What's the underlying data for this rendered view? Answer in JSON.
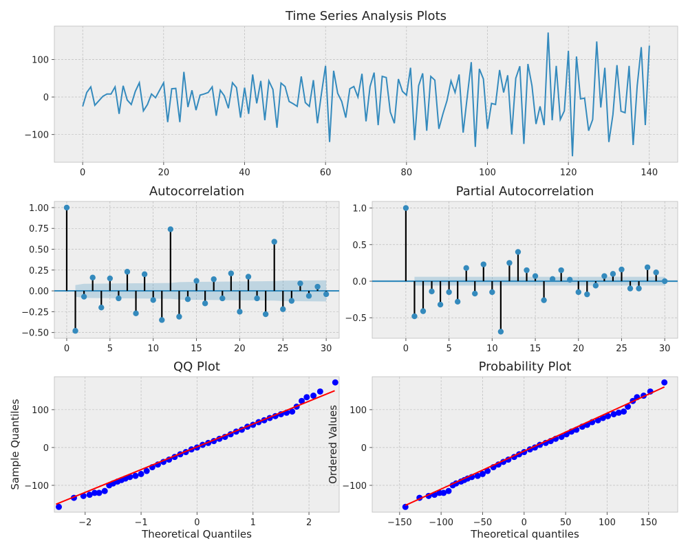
{
  "chart_data": [
    {
      "type": "line",
      "title": "Time Series Analysis Plots",
      "color": "#348ABD",
      "grid": true,
      "x": [
        0,
        1,
        2,
        3,
        4,
        5,
        6,
        7,
        8,
        9,
        10,
        11,
        12,
        13,
        14,
        15,
        16,
        17,
        18,
        19,
        20,
        21,
        22,
        23,
        24,
        25,
        26,
        27,
        28,
        29,
        30,
        31,
        32,
        33,
        34,
        35,
        36,
        37,
        38,
        39,
        40,
        41,
        42,
        43,
        44,
        45,
        46,
        47,
        48,
        49,
        50,
        51,
        52,
        53,
        54,
        55,
        56,
        57,
        58,
        59,
        60,
        61,
        62,
        63,
        64,
        65,
        66,
        67,
        68,
        69,
        70,
        71,
        72,
        73,
        74,
        75,
        76,
        77,
        78,
        79,
        80,
        81,
        82,
        83,
        84,
        85,
        86,
        87,
        88,
        89,
        90,
        91,
        92,
        93,
        94,
        95,
        96,
        97,
        98,
        99,
        100,
        101,
        102,
        103,
        104,
        105,
        106,
        107,
        108,
        109,
        110,
        111,
        112,
        113,
        114,
        115,
        116,
        117,
        118,
        119,
        120,
        121,
        122,
        123,
        124,
        125,
        126,
        127,
        128,
        129,
        130,
        131,
        132,
        133,
        134,
        135,
        136,
        137,
        138,
        139,
        140
      ],
      "values": [
        -25,
        12,
        27,
        -22,
        -10,
        2,
        8,
        8,
        27,
        -45,
        30,
        -8,
        -20,
        15,
        38,
        -37,
        -20,
        8,
        -2,
        18,
        38,
        -67,
        22,
        23,
        -67,
        67,
        -27,
        18,
        -35,
        5,
        8,
        12,
        27,
        -50,
        18,
        3,
        -30,
        38,
        25,
        -55,
        25,
        -45,
        60,
        -17,
        43,
        -62,
        43,
        20,
        -82,
        37,
        28,
        -12,
        -18,
        -25,
        55,
        -15,
        -25,
        45,
        -70,
        10,
        83,
        -120,
        70,
        10,
        -12,
        -55,
        22,
        28,
        0,
        62,
        -65,
        28,
        65,
        -75,
        55,
        52,
        -40,
        -70,
        48,
        15,
        5,
        78,
        -115,
        30,
        63,
        -90,
        55,
        45,
        -85,
        -45,
        -10,
        43,
        12,
        60,
        -95,
        0,
        93,
        -133,
        75,
        48,
        -85,
        -17,
        -20,
        72,
        12,
        58,
        -100,
        50,
        82,
        -125,
        88,
        30,
        -72,
        -25,
        -75,
        172,
        -62,
        83,
        -60,
        -37,
        123,
        -158,
        108,
        -5,
        -3,
        -90,
        -60,
        148,
        -28,
        78,
        -120,
        -47,
        85,
        -38,
        -42,
        83,
        -128,
        30,
        133,
        -75,
        137
      ],
      "xlim": [
        -7,
        147
      ],
      "ylim": [
        -174,
        189
      ],
      "xticks": [
        0,
        20,
        40,
        60,
        80,
        100,
        120,
        140
      ],
      "yticks": [
        {
          "value": -100,
          "label": "−100"
        },
        0,
        100
      ]
    },
    {
      "type": "stem",
      "title": "Autocorrelation",
      "color": "#348ABD",
      "stem_color": "#000000",
      "band_color": "#348ABD",
      "grid": true,
      "x": [
        0,
        1,
        2,
        3,
        4,
        5,
        6,
        7,
        8,
        9,
        10,
        11,
        12,
        13,
        14,
        15,
        16,
        17,
        18,
        19,
        20,
        21,
        22,
        23,
        24,
        25,
        26,
        27,
        28,
        29,
        30
      ],
      "values": [
        1.0,
        -0.48,
        -0.07,
        0.16,
        -0.2,
        0.15,
        -0.09,
        0.23,
        -0.27,
        0.2,
        -0.11,
        -0.35,
        0.74,
        -0.31,
        -0.1,
        0.12,
        -0.15,
        0.14,
        -0.09,
        0.21,
        -0.25,
        0.17,
        -0.09,
        -0.28,
        0.59,
        -0.22,
        -0.12,
        0.09,
        -0.06,
        0.05,
        -0.04
      ],
      "confint": [
        null,
        0.07,
        0.085,
        0.086,
        0.087,
        0.088,
        0.089,
        0.09,
        0.091,
        0.092,
        0.093,
        0.094,
        0.095,
        0.105,
        0.107,
        0.108,
        0.109,
        0.11,
        0.111,
        0.112,
        0.113,
        0.114,
        0.115,
        0.116,
        0.117,
        0.122,
        0.123,
        0.124,
        0.125,
        0.126,
        0.127
      ],
      "xlim": [
        -1.43,
        31.5
      ],
      "ylim": [
        -0.569,
        1.074
      ],
      "xticks": [
        0,
        5,
        10,
        15,
        20,
        25,
        30
      ],
      "yticks": [
        {
          "value": -0.5,
          "label": "−0.50"
        },
        {
          "value": -0.25,
          "label": "−0.25"
        },
        {
          "value": 0,
          "label": "0.00"
        },
        {
          "value": 0.25,
          "label": "0.25"
        },
        {
          "value": 0.5,
          "label": "0.50"
        },
        {
          "value": 0.75,
          "label": "0.75"
        },
        {
          "value": 1,
          "label": "1.00"
        }
      ]
    },
    {
      "type": "stem",
      "title": "Partial Autocorrelation",
      "color": "#348ABD",
      "stem_color": "#000000",
      "band_color": "#348ABD",
      "grid": true,
      "x": [
        0,
        1,
        2,
        3,
        4,
        5,
        6,
        7,
        8,
        9,
        10,
        11,
        12,
        13,
        14,
        15,
        16,
        17,
        18,
        19,
        20,
        21,
        22,
        23,
        24,
        25,
        26,
        27,
        28,
        29,
        30
      ],
      "values": [
        1.0,
        -0.48,
        -0.41,
        -0.14,
        -0.32,
        -0.15,
        -0.28,
        0.18,
        -0.17,
        0.23,
        -0.15,
        -0.69,
        0.25,
        0.4,
        0.15,
        0.07,
        -0.26,
        0.03,
        0.15,
        0.02,
        -0.15,
        -0.18,
        -0.06,
        0.07,
        0.1,
        0.16,
        -0.1,
        -0.1,
        0.19,
        0.12,
        0.0
      ],
      "confint": [
        null,
        0.06,
        0.06,
        0.06,
        0.06,
        0.06,
        0.06,
        0.06,
        0.06,
        0.06,
        0.06,
        0.06,
        0.06,
        0.06,
        0.06,
        0.06,
        0.06,
        0.06,
        0.06,
        0.06,
        0.06,
        0.06,
        0.06,
        0.06,
        0.06,
        0.06,
        0.06,
        0.06,
        0.06,
        0.06,
        0.06
      ],
      "xlim": [
        -3.9,
        31.5
      ],
      "ylim": [
        -0.78,
        1.09
      ],
      "xticks": [
        0,
        5,
        10,
        15,
        20,
        25,
        30
      ],
      "yticks": [
        {
          "value": -0.5,
          "label": "−0.5"
        },
        {
          "value": 0,
          "label": "0.0"
        },
        {
          "value": 0.5,
          "label": "0.5"
        },
        {
          "value": 1,
          "label": "1.0"
        }
      ]
    },
    {
      "type": "scatter",
      "title": "QQ Plot",
      "x_label": "Theoretical Quantiles",
      "y_label": "Sample Quantiles",
      "color": "#0000ff",
      "grid": true,
      "x": [
        -2.47,
        -2.2,
        -2.03,
        -1.92,
        -1.83,
        -1.75,
        -1.65,
        -1.57,
        -1.5,
        -1.42,
        -1.35,
        -1.28,
        -1.2,
        -1.1,
        -1.0,
        -0.9,
        -0.8,
        -0.7,
        -0.6,
        -0.5,
        -0.4,
        -0.3,
        -0.2,
        -0.1,
        0,
        0.1,
        0.2,
        0.3,
        0.4,
        0.5,
        0.6,
        0.7,
        0.8,
        0.9,
        1.0,
        1.1,
        1.2,
        1.3,
        1.4,
        1.5,
        1.6,
        1.7,
        1.78,
        1.87,
        1.96,
        2.08,
        2.2,
        2.47
      ],
      "values": [
        -157,
        -133,
        -128,
        -125,
        -120,
        -120,
        -115,
        -100,
        -95,
        -90,
        -86,
        -82,
        -78,
        -75,
        -70,
        -62,
        -52,
        -45,
        -38,
        -32,
        -25,
        -18,
        -12,
        -5,
        0,
        7,
        12,
        17,
        23,
        28,
        35,
        42,
        47,
        55,
        60,
        67,
        72,
        78,
        83,
        88,
        92,
        95,
        108,
        123,
        133,
        137,
        148,
        172
      ],
      "fit_line": {
        "x": [
          -2.52,
          2.46
        ],
        "values": [
          -150,
          150
        ],
        "color": "#ff0000"
      },
      "xlim": [
        -2.55,
        2.54
      ],
      "ylim": [
        -171,
        187
      ],
      "xticks": [
        {
          "value": -2,
          "label": "−2"
        },
        {
          "value": -1,
          "label": "−1"
        },
        0,
        1,
        2
      ],
      "yticks": [
        {
          "value": -100,
          "label": "−100"
        },
        0,
        100
      ]
    },
    {
      "type": "scatter",
      "title": "Probability Plot",
      "x_label": "Theoretical quantiles",
      "y_label": "Ordered Values",
      "color": "#0000ff",
      "grid": true,
      "x": [
        -143,
        -126,
        -115,
        -108,
        -102,
        -97,
        -91,
        -86,
        -82,
        -76,
        -72,
        -68,
        -63,
        -56,
        -50,
        -44,
        -37,
        -31,
        -25,
        -19,
        -12,
        -6,
        0,
        7,
        13,
        19,
        26,
        32,
        38,
        45,
        51,
        57,
        63,
        70,
        76,
        82,
        89,
        95,
        101,
        108,
        114,
        120,
        125,
        131,
        136,
        144,
        152,
        169
      ],
      "values": [
        -157,
        -133,
        -128,
        -125,
        -120,
        -120,
        -115,
        -100,
        -95,
        -90,
        -86,
        -82,
        -78,
        -75,
        -70,
        -62,
        -52,
        -45,
        -38,
        -32,
        -25,
        -18,
        -12,
        -5,
        0,
        7,
        12,
        17,
        23,
        28,
        35,
        42,
        47,
        55,
        60,
        67,
        72,
        78,
        83,
        88,
        92,
        95,
        108,
        123,
        133,
        137,
        148,
        172
      ],
      "fit_line": {
        "x": [
          -143,
          169
        ],
        "values": [
          -153,
          160
        ],
        "color": "#ff0000"
      },
      "xlim": [
        -183,
        185
      ],
      "ylim": [
        -171,
        187
      ],
      "xticks": [
        {
          "value": -150,
          "label": "−150"
        },
        {
          "value": -100,
          "label": "−100"
        },
        {
          "value": -50,
          "label": "−50"
        },
        0,
        50,
        100,
        150
      ],
      "yticks": [
        {
          "value": -100,
          "label": "−100"
        },
        0,
        100
      ]
    }
  ]
}
